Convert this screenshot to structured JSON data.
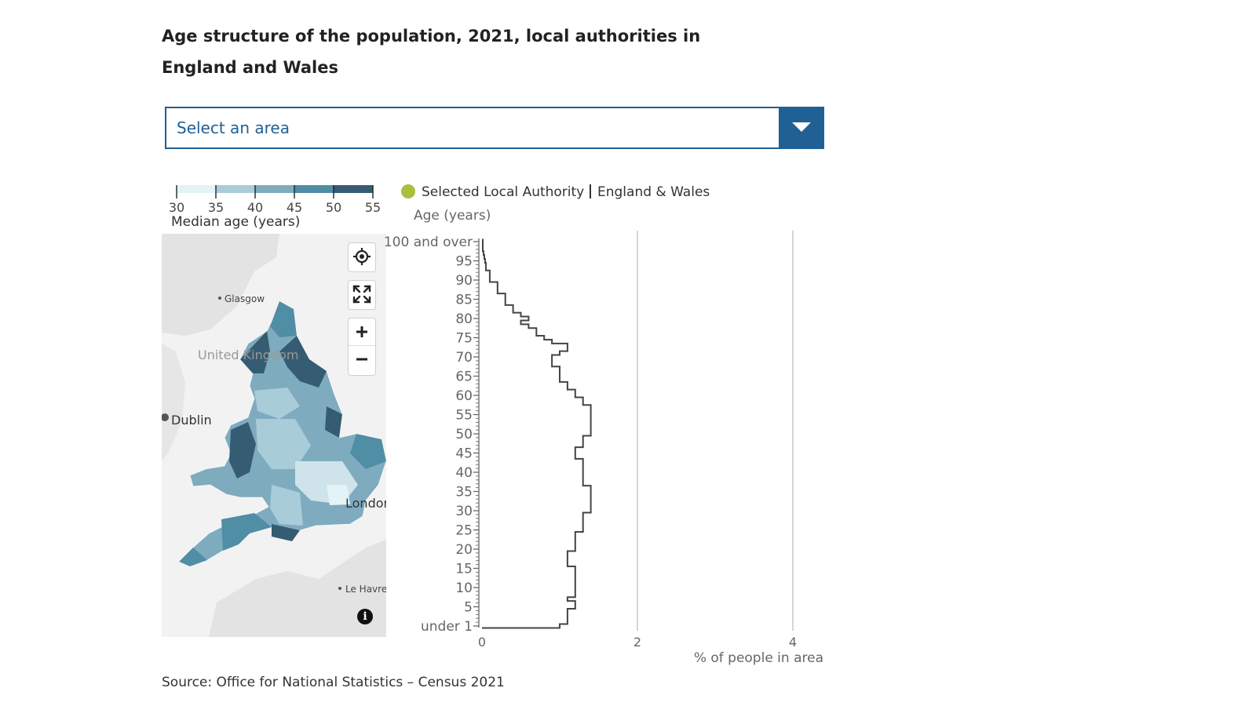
{
  "title": "Age structure of the population, 2021, local authorities in England and Wales",
  "dropdown": {
    "placeholder": "Select an area"
  },
  "map": {
    "legend": {
      "title": "Median age (years)",
      "breaks": [
        30,
        35,
        40,
        45,
        50,
        55
      ],
      "colors": [
        "#e4f4f6",
        "#a9ccd9",
        "#7fabbf",
        "#4f8ea4",
        "#355c72"
      ]
    },
    "labels": {
      "glasgow": "Glasgow",
      "united_kingdom": "United Kingdom",
      "dublin": "Dublin",
      "london": "London",
      "le_havre": "Le Havre"
    },
    "controls": {
      "locate": "locate-icon",
      "fullscreen": "fullscreen-icon",
      "zoom_in": "+",
      "zoom_out": "−",
      "info": "i"
    }
  },
  "chart_data": {
    "type": "line",
    "subtype": "population-pyramid-step",
    "legend": [
      {
        "name": "Selected Local Authority",
        "color": "#a8bf3f",
        "marker": "circle"
      },
      {
        "name": "England & Wales",
        "color": "#333333",
        "marker": "line"
      }
    ],
    "ylabel": "Age (years)",
    "xlabel": "% of people in area",
    "x_ticks": [
      0,
      2,
      4
    ],
    "xlim": [
      0,
      4.4
    ],
    "y_ticks": [
      {
        "age": 0,
        "label": "under 1"
      },
      {
        "age": 5,
        "label": "5"
      },
      {
        "age": 10,
        "label": "10"
      },
      {
        "age": 15,
        "label": "15"
      },
      {
        "age": 20,
        "label": "20"
      },
      {
        "age": 25,
        "label": "25"
      },
      {
        "age": 30,
        "label": "30"
      },
      {
        "age": 35,
        "label": "35"
      },
      {
        "age": 40,
        "label": "40"
      },
      {
        "age": 45,
        "label": "45"
      },
      {
        "age": 50,
        "label": "50"
      },
      {
        "age": 55,
        "label": "55"
      },
      {
        "age": 60,
        "label": "60"
      },
      {
        "age": 65,
        "label": "65"
      },
      {
        "age": 70,
        "label": "70"
      },
      {
        "age": 75,
        "label": "75"
      },
      {
        "age": 80,
        "label": "80"
      },
      {
        "age": 85,
        "label": "85"
      },
      {
        "age": 90,
        "label": "90"
      },
      {
        "age": 95,
        "label": "95"
      },
      {
        "age": 100,
        "label": "100 and over"
      }
    ],
    "ylim": [
      0,
      100
    ],
    "series": [
      {
        "name": "England & Wales",
        "ages": [
          0,
          1,
          2,
          3,
          4,
          5,
          6,
          7,
          8,
          9,
          10,
          11,
          12,
          13,
          14,
          15,
          16,
          17,
          18,
          19,
          20,
          21,
          22,
          23,
          24,
          25,
          26,
          27,
          28,
          29,
          30,
          31,
          32,
          33,
          34,
          35,
          36,
          37,
          38,
          39,
          40,
          41,
          42,
          43,
          44,
          45,
          46,
          47,
          48,
          49,
          50,
          51,
          52,
          53,
          54,
          55,
          56,
          57,
          58,
          59,
          60,
          61,
          62,
          63,
          64,
          65,
          66,
          67,
          68,
          69,
          70,
          71,
          72,
          73,
          74,
          75,
          76,
          77,
          78,
          79,
          80,
          81,
          82,
          83,
          84,
          85,
          86,
          87,
          88,
          89,
          90,
          91,
          92,
          93,
          94,
          95,
          96,
          97,
          98,
          99,
          100
        ],
        "values": [
          1.0,
          1.1,
          1.1,
          1.1,
          1.1,
          1.2,
          1.2,
          1.1,
          1.2,
          1.2,
          1.2,
          1.2,
          1.2,
          1.2,
          1.2,
          1.2,
          1.1,
          1.1,
          1.1,
          1.1,
          1.2,
          1.2,
          1.2,
          1.2,
          1.2,
          1.3,
          1.3,
          1.3,
          1.3,
          1.3,
          1.4,
          1.4,
          1.4,
          1.4,
          1.4,
          1.4,
          1.4,
          1.3,
          1.3,
          1.3,
          1.3,
          1.3,
          1.3,
          1.3,
          1.2,
          1.2,
          1.2,
          1.3,
          1.3,
          1.3,
          1.4,
          1.4,
          1.4,
          1.4,
          1.4,
          1.4,
          1.4,
          1.4,
          1.3,
          1.3,
          1.2,
          1.2,
          1.1,
          1.1,
          1.0,
          1.0,
          1.0,
          1.0,
          0.9,
          0.9,
          0.9,
          1.0,
          1.1,
          1.1,
          0.9,
          0.8,
          0.7,
          0.7,
          0.6,
          0.5,
          0.6,
          0.5,
          0.4,
          0.4,
          0.3,
          0.3,
          0.3,
          0.2,
          0.2,
          0.2,
          0.1,
          0.1,
          0.1,
          0.05,
          0.05,
          0.04,
          0.03,
          0.02,
          0.01,
          0.01,
          0.01
        ]
      }
    ]
  },
  "source": "Source: Office for National Statistics – Census 2021"
}
